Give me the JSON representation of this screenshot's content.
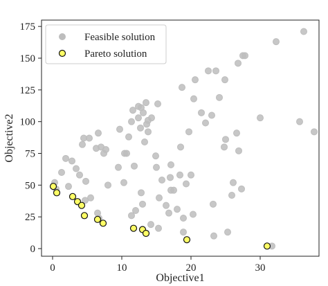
{
  "chart_data": {
    "type": "scatter",
    "xlabel": "Objective1",
    "ylabel": "Objective2",
    "xlim": [
      -1.6,
      38.5
    ],
    "ylim": [
      -6,
      180
    ],
    "xticks": [
      0,
      10,
      20,
      30
    ],
    "yticks": [
      0,
      25,
      50,
      75,
      100,
      125,
      150,
      175
    ],
    "legend_position": "top-left",
    "grid": false,
    "series": [
      {
        "name": "Feasible solution",
        "marker_fill": "#bdbdbd",
        "marker_stroke": "#bdbdbd",
        "points": [
          [
            0.3,
            52
          ],
          [
            0.5,
            47
          ],
          [
            1.3,
            60
          ],
          [
            1.9,
            71
          ],
          [
            2.3,
            49
          ],
          [
            2.8,
            69
          ],
          [
            3.4,
            63
          ],
          [
            3.9,
            58
          ],
          [
            4.3,
            82
          ],
          [
            4.5,
            87
          ],
          [
            4.7,
            38
          ],
          [
            4.8,
            53
          ],
          [
            5.3,
            87
          ],
          [
            5.5,
            40
          ],
          [
            6.3,
            79
          ],
          [
            6.6,
            91
          ],
          [
            6.5,
            28
          ],
          [
            6.7,
            24
          ],
          [
            7.0,
            80
          ],
          [
            7.4,
            75
          ],
          [
            7.7,
            78
          ],
          [
            8.0,
            50
          ],
          [
            9.5,
            64
          ],
          [
            9.7,
            94
          ],
          [
            10.3,
            52
          ],
          [
            10.4,
            75
          ],
          [
            10.7,
            75
          ],
          [
            11.0,
            88
          ],
          [
            11.4,
            26
          ],
          [
            11.4,
            100
          ],
          [
            11.6,
            109
          ],
          [
            11.8,
            65
          ],
          [
            12.0,
            30
          ],
          [
            12.4,
            112
          ],
          [
            12.4,
            103
          ],
          [
            12.7,
            95
          ],
          [
            12.8,
            44
          ],
          [
            12.8,
            111
          ],
          [
            13.0,
            35
          ],
          [
            13.1,
            107
          ],
          [
            13.3,
            84
          ],
          [
            13.5,
            115
          ],
          [
            13.6,
            98
          ],
          [
            13.8,
            92
          ],
          [
            13.8,
            101
          ],
          [
            14.2,
            19
          ],
          [
            14.3,
            103
          ],
          [
            14.9,
            73
          ],
          [
            15.0,
            64
          ],
          [
            15.2,
            114
          ],
          [
            15.3,
            16
          ],
          [
            15.4,
            40
          ],
          [
            15.8,
            54
          ],
          [
            16.4,
            34
          ],
          [
            16.8,
            28
          ],
          [
            17.0,
            56
          ],
          [
            17.1,
            66
          ],
          [
            17.1,
            46
          ],
          [
            17.5,
            46
          ],
          [
            18.0,
            31
          ],
          [
            18.4,
            58
          ],
          [
            18.5,
            80
          ],
          [
            18.7,
            127
          ],
          [
            18.9,
            13
          ],
          [
            18.9,
            24
          ],
          [
            19.3,
            51
          ],
          [
            19.7,
            92
          ],
          [
            20.0,
            58
          ],
          [
            20.3,
            27
          ],
          [
            20.4,
            118
          ],
          [
            20.6,
            133
          ],
          [
            21.5,
            107
          ],
          [
            22.1,
            99
          ],
          [
            22.5,
            140
          ],
          [
            23.0,
            105
          ],
          [
            23.2,
            35
          ],
          [
            23.3,
            10
          ],
          [
            23.6,
            140
          ],
          [
            24.1,
            119
          ],
          [
            24.8,
            80
          ],
          [
            24.9,
            133
          ],
          [
            25.0,
            86
          ],
          [
            25.3,
            13
          ],
          [
            25.9,
            42
          ],
          [
            26.1,
            52
          ],
          [
            26.6,
            91
          ],
          [
            26.8,
            146
          ],
          [
            26.9,
            77
          ],
          [
            27.3,
            47
          ],
          [
            27.5,
            152
          ],
          [
            27.8,
            152
          ],
          [
            30.0,
            103
          ],
          [
            31.7,
            2
          ],
          [
            32.3,
            163
          ],
          [
            35.7,
            100
          ],
          [
            36.3,
            171
          ],
          [
            37.8,
            92
          ]
        ]
      },
      {
        "name": "Pareto solution",
        "marker_fill": "#ffff66",
        "marker_stroke": "#111111",
        "points": [
          [
            0.1,
            49
          ],
          [
            0.6,
            44
          ],
          [
            2.9,
            41
          ],
          [
            3.6,
            37
          ],
          [
            4.2,
            34
          ],
          [
            4.6,
            26
          ],
          [
            6.5,
            23
          ],
          [
            7.3,
            20
          ],
          [
            11.7,
            16
          ],
          [
            13.0,
            15
          ],
          [
            13.5,
            12
          ],
          [
            19.4,
            7
          ],
          [
            31.0,
            2
          ]
        ]
      }
    ]
  }
}
